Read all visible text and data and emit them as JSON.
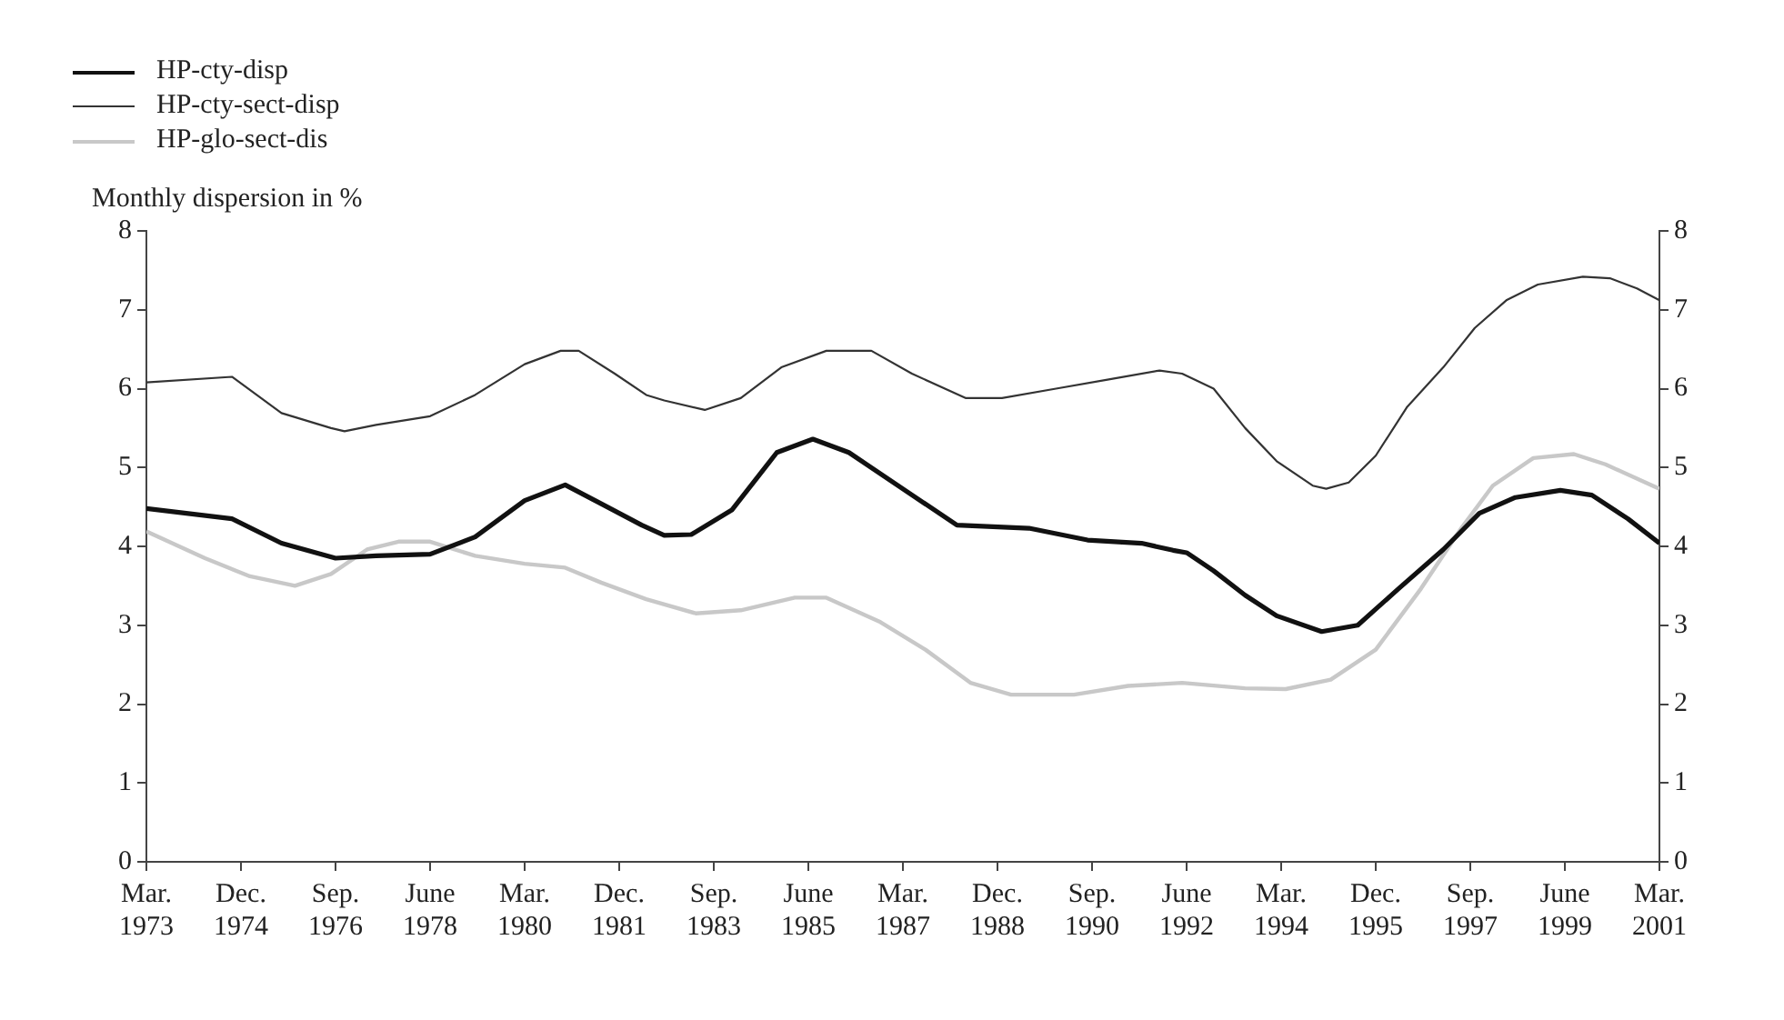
{
  "chart_data": {
    "type": "line",
    "ylabel": "Monthly dispersion in %",
    "legend": "top left",
    "grid": false,
    "xlim": [
      "1973-03",
      "2001-03"
    ],
    "xticks": [
      {
        "value": "1973-03",
        "label": "Mar. 1973"
      },
      {
        "value": "1974-12",
        "label": "Dec. 1974"
      },
      {
        "value": "1976-09",
        "label": "Sep. 1976"
      },
      {
        "value": "1978-06",
        "label": "June 1978"
      },
      {
        "value": "1980-03",
        "label": "Mar. 1980"
      },
      {
        "value": "1981-12",
        "label": "Dec. 1981"
      },
      {
        "value": "1983-09",
        "label": "Sep. 1983"
      },
      {
        "value": "1985-06",
        "label": "June 1985"
      },
      {
        "value": "1987-03",
        "label": "Mar. 1987"
      },
      {
        "value": "1988-12",
        "label": "Dec. 1988"
      },
      {
        "value": "1990-09",
        "label": "Sep. 1990"
      },
      {
        "value": "1992-06",
        "label": "June 1992"
      },
      {
        "value": "1994-03",
        "label": "Mar. 1994"
      },
      {
        "value": "1995-12",
        "label": "Dec. 1995"
      },
      {
        "value": "1997-09",
        "label": "Sep. 1997"
      },
      {
        "value": "1999-06",
        "label": "June 1999"
      },
      {
        "value": "2001-03",
        "label": "Mar. 2001"
      }
    ],
    "ylim": [
      0,
      8
    ],
    "yticks": [
      0,
      1,
      2,
      3,
      4,
      5,
      6,
      7,
      8
    ],
    "y2lim": [
      0,
      8
    ],
    "y2ticks": [
      0,
      1,
      2,
      3,
      4,
      5,
      6,
      7,
      8
    ],
    "series": [
      {
        "name": "HP-cty-disp",
        "color": "#111111",
        "x": [
          "1973-03",
          "1974-10",
          "1975-09",
          "1976-09",
          "1977-06",
          "1978-06",
          "1979-04",
          "1980-03",
          "1980-12",
          "1981-08",
          "1982-05",
          "1982-10",
          "1983-04",
          "1984-01",
          "1984-11",
          "1985-07",
          "1986-03",
          "1987-04",
          "1988-03",
          "1989-07",
          "1990-08",
          "1991-08",
          "1992-03",
          "1992-06",
          "1992-12",
          "1993-07",
          "1994-02",
          "1994-12",
          "1995-08",
          "1996-05",
          "1997-03",
          "1997-11",
          "1998-07",
          "1999-05",
          "1999-12",
          "2000-08",
          "2001-03"
        ],
        "values": [
          4.48,
          4.35,
          4.04,
          3.85,
          3.88,
          3.9,
          4.12,
          4.58,
          4.78,
          4.54,
          4.27,
          4.14,
          4.15,
          4.46,
          5.19,
          5.36,
          5.19,
          4.69,
          4.27,
          4.23,
          4.08,
          4.04,
          3.95,
          3.92,
          3.69,
          3.38,
          3.12,
          2.92,
          3.0,
          3.46,
          3.96,
          4.42,
          4.62,
          4.71,
          4.65,
          4.35,
          4.04
        ]
      },
      {
        "name": "HP-cty-sect-disp",
        "color": "#333333",
        "x": [
          "1973-03",
          "1974-10",
          "1975-09",
          "1976-08",
          "1976-11",
          "1977-06",
          "1978-06",
          "1979-04",
          "1980-03",
          "1980-11",
          "1981-03",
          "1981-11",
          "1982-06",
          "1982-10",
          "1983-07",
          "1984-03",
          "1984-12",
          "1985-10",
          "1986-08",
          "1987-05",
          "1988-05",
          "1989-01",
          "1990-01",
          "1991-01",
          "1991-12",
          "1992-05",
          "1992-12",
          "1993-07",
          "1994-02",
          "1994-10",
          "1995-01",
          "1995-06",
          "1995-12",
          "1996-07",
          "1997-03",
          "1997-10",
          "1998-05",
          "1998-12",
          "1999-10",
          "2000-04",
          "2000-10",
          "2001-03"
        ],
        "values": [
          6.08,
          6.15,
          5.69,
          5.5,
          5.46,
          5.54,
          5.65,
          5.92,
          6.31,
          6.48,
          6.48,
          6.19,
          5.92,
          5.85,
          5.73,
          5.88,
          6.27,
          6.48,
          6.48,
          6.19,
          5.88,
          5.88,
          6.0,
          6.12,
          6.23,
          6.19,
          6.0,
          5.5,
          5.08,
          4.77,
          4.73,
          4.81,
          5.15,
          5.77,
          6.27,
          6.77,
          7.12,
          7.32,
          7.42,
          7.4,
          7.27,
          7.12
        ]
      },
      {
        "name": "HP-glo-sect-dis",
        "color": "#c8c8c8",
        "x": [
          "1973-03",
          "1974-04",
          "1975-02",
          "1975-12",
          "1976-08",
          "1977-04",
          "1977-11",
          "1978-06",
          "1979-04",
          "1980-03",
          "1980-12",
          "1981-08",
          "1982-06",
          "1983-05",
          "1984-03",
          "1985-03",
          "1985-10",
          "1986-10",
          "1987-08",
          "1988-06",
          "1989-03",
          "1990-05",
          "1991-05",
          "1992-05",
          "1993-07",
          "1994-04",
          "1995-02",
          "1995-12",
          "1996-10",
          "1997-07",
          "1998-02",
          "1998-11",
          "1999-08",
          "2000-03",
          "2001-03"
        ],
        "values": [
          4.19,
          3.85,
          3.62,
          3.5,
          3.65,
          3.96,
          4.06,
          4.06,
          3.88,
          3.78,
          3.73,
          3.54,
          3.33,
          3.15,
          3.19,
          3.35,
          3.35,
          3.04,
          2.69,
          2.27,
          2.12,
          2.12,
          2.23,
          2.27,
          2.2,
          2.19,
          2.31,
          2.69,
          3.46,
          4.23,
          4.77,
          5.12,
          5.17,
          5.04,
          4.73
        ]
      }
    ]
  }
}
